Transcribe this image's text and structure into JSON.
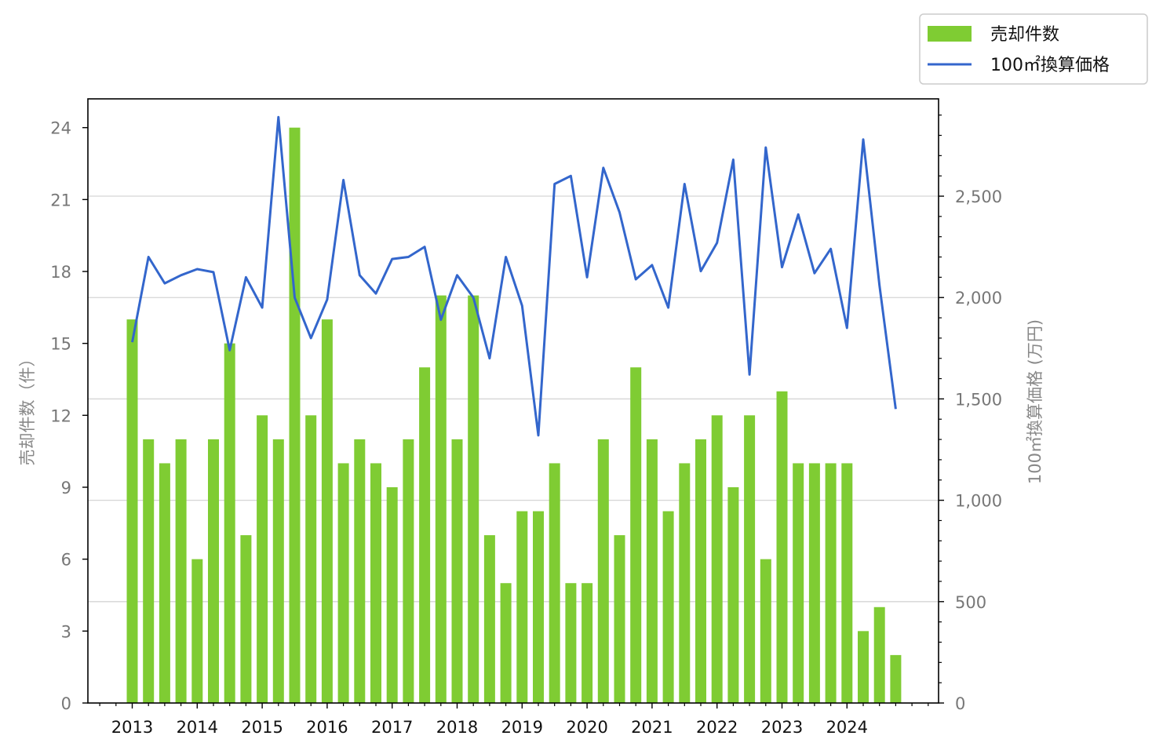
{
  "chart_data": {
    "type": "bar",
    "series": [
      {
        "name": "売却件数",
        "type": "bar",
        "axis": "left",
        "color": "#7fcc33",
        "values": [
          16,
          11,
          10,
          11,
          6,
          11,
          15,
          7,
          12,
          11,
          24,
          12,
          16,
          10,
          11,
          10,
          9,
          11,
          14,
          17,
          11,
          17,
          7,
          5,
          8,
          8,
          10,
          5,
          5,
          11,
          7,
          14,
          11,
          8,
          10,
          11,
          12,
          9,
          12,
          6,
          13,
          10,
          10,
          10,
          10,
          3,
          4,
          2
        ]
      },
      {
        "name": "100㎡換算価格",
        "type": "line",
        "axis": "right",
        "color": "#3366cc",
        "values": [
          1780,
          2200,
          2070,
          2110,
          2140,
          2125,
          1740,
          2100,
          1950,
          2890,
          2000,
          1800,
          1990,
          2580,
          2110,
          2020,
          2190,
          2200,
          2250,
          1890,
          2110,
          2000,
          1700,
          2200,
          1960,
          1320,
          2560,
          2600,
          2100,
          2640,
          2420,
          2090,
          2160,
          1950,
          2560,
          2130,
          2270,
          2680,
          1620,
          2740,
          2150,
          2410,
          2120,
          2240,
          1850,
          2780,
          2060,
          1450
        ]
      }
    ],
    "x_labels": [
      "2013",
      "2014",
      "2015",
      "2016",
      "2017",
      "2018",
      "2019",
      "2020",
      "2021",
      "2022",
      "2023",
      "2024"
    ],
    "x_start_year": 2013,
    "points_per_year": 4,
    "ylabel_left": "売却件数（件）",
    "ylabel_right": "100㎡換算価格 (万円)",
    "yticks_left": [
      "0",
      "3",
      "6",
      "9",
      "12",
      "15",
      "18",
      "21",
      "24"
    ],
    "yticks_right": [
      "0",
      "500",
      "1,000",
      "1,500",
      "2,000",
      "2,500"
    ],
    "ylim_left": [
      0,
      25.2
    ],
    "ylim_right": [
      0,
      2980
    ],
    "grid": "right-axis horizontal",
    "legend": {
      "placement": "top-right",
      "entries": [
        "売却件数",
        "100㎡換算価格"
      ]
    }
  }
}
